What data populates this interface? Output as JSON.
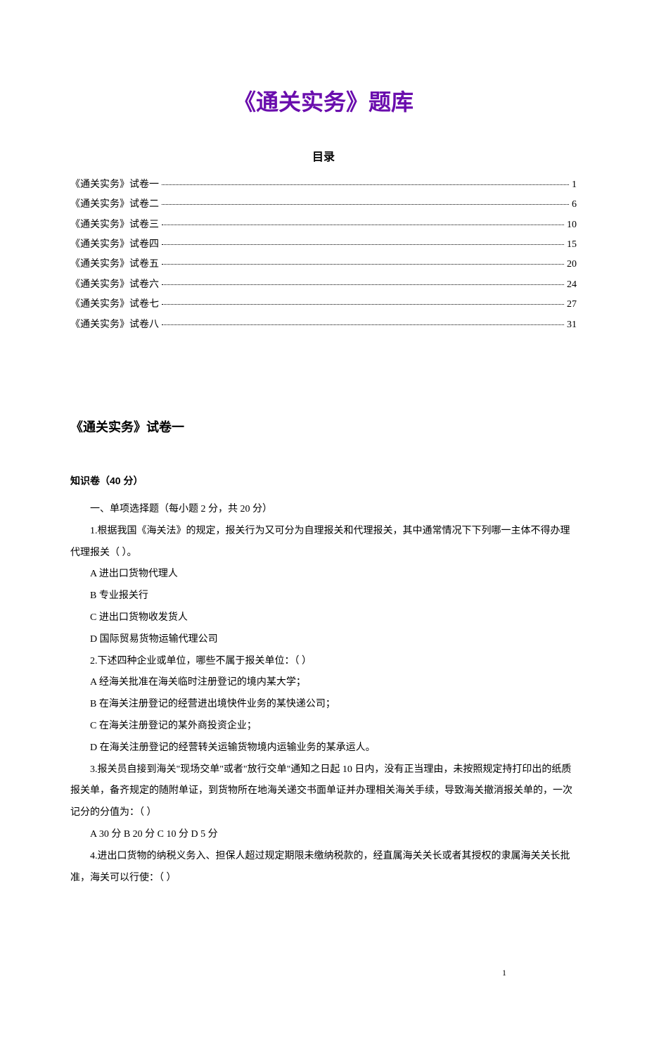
{
  "main_title": "《通关实务》题库",
  "toc_title": "目录",
  "toc_items": [
    {
      "label": "《通关实务》试卷一",
      "page": "1"
    },
    {
      "label": "《通关实务》试卷二",
      "page": "6"
    },
    {
      "label": "《通关实务》试卷三",
      "page": "10"
    },
    {
      "label": "《通关实务》试卷四",
      "page": "15"
    },
    {
      "label": "《通关实务》试卷五",
      "page": "20"
    },
    {
      "label": "《通关实务》试卷六",
      "page": "24"
    },
    {
      "label": "《通关实务》试卷七",
      "page": "27"
    },
    {
      "label": "《通关实务》试卷八",
      "page": "31"
    }
  ],
  "section_title": "《通关实务》试卷一",
  "subsection_title": "知识卷（40 分）",
  "part_heading": "一、单项选择题（每小题 2 分，共 20 分）",
  "q1_stem": "1.根据我国《海关法》的规定，报关行为又可分为自理报关和代理报关，其中通常情况下下列哪一主体不得办理代理报关（ ）。",
  "q1_a": "A 进出口货物代理人",
  "q1_b": "B 专业报关行",
  "q1_c": "C 进出口货物收发货人",
  "q1_d": "D 国际贸易货物运输代理公司",
  "q2_stem": "2.下述四种企业或单位，哪些不属于报关单位：（ ）",
  "q2_a": "A 经海关批准在海关临时注册登记的境内某大学；",
  "q2_b": "B 在海关注册登记的经营进出境快件业务的某快递公司；",
  "q2_c": "C 在海关注册登记的某外商投资企业；",
  "q2_d": "D 在海关注册登记的经营转关运输货物境内运输业务的某承运人。",
  "q3_stem": "3.报关员自接到海关\"现场交单\"或者\"放行交单\"通知之日起 10 日内，没有正当理由，未按照规定持打印出的纸质报关单，备齐规定的随附单证，到货物所在地海关递交书面单证并办理相关海关手续，导致海关撤消报关单的，一次记分的分值为：（ ）",
  "q3_opts": "A 30 分  B 20 分  C 10 分  D 5 分",
  "q4_stem": "4.进出口货物的纳税义务入、担保人超过规定期限未缴纳税款的，经直属海关关长或者其授权的隶属海关关长批准，海关可以行使：（ ）",
  "page_number": "1",
  "colors": {
    "title_color": "#6a0dad",
    "text_color": "#000000",
    "background": "#ffffff"
  },
  "typography": {
    "title_fontsize": 32,
    "body_fontsize": 14,
    "section_fontsize": 18,
    "line_height": 2.2
  }
}
